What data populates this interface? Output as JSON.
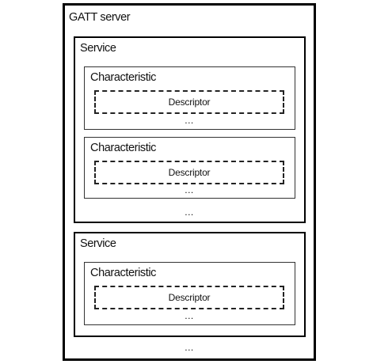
{
  "diagram": {
    "server": {
      "label": "GATT server",
      "more": "..."
    },
    "services": [
      {
        "label": "Service",
        "more": "...",
        "characteristics": [
          {
            "label": "Characteristic",
            "descriptor": "Descriptor",
            "more": "..."
          },
          {
            "label": "Characteristic",
            "descriptor": "Descriptor",
            "more": "..."
          }
        ]
      },
      {
        "label": "Service",
        "characteristics": [
          {
            "label": "Characteristic",
            "descriptor": "Descriptor",
            "more": "..."
          }
        ]
      }
    ]
  }
}
